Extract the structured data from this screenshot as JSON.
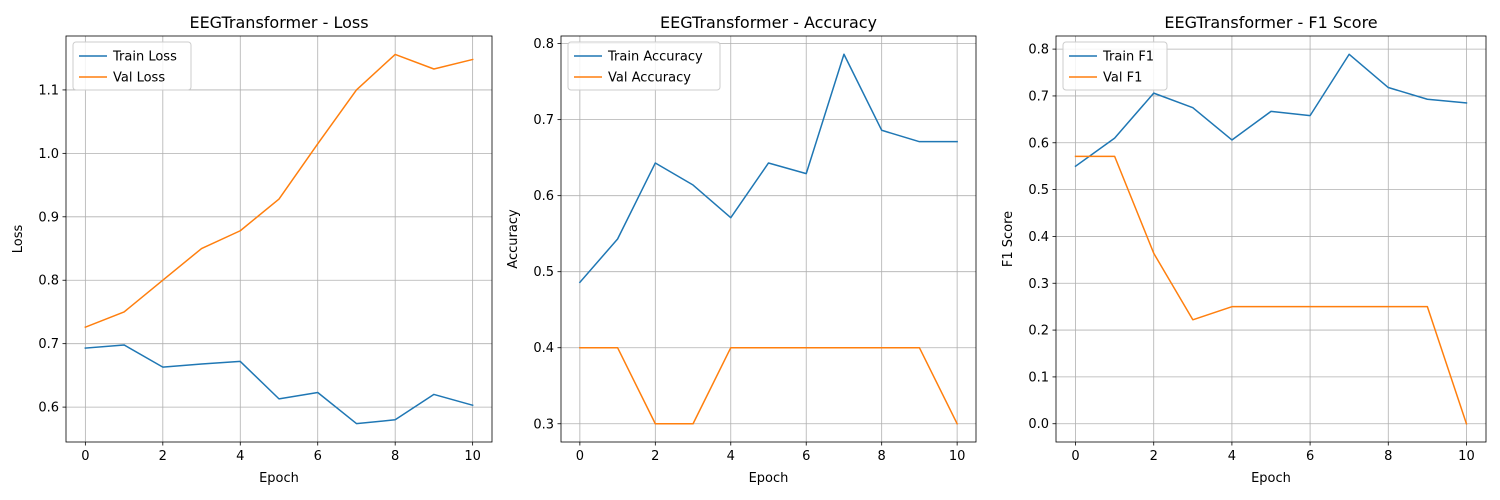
{
  "chart_data": [
    {
      "type": "line",
      "title": "EEGTransformer - Loss",
      "xlabel": "Epoch",
      "ylabel": "Loss",
      "x": [
        0,
        1,
        2,
        3,
        4,
        5,
        6,
        7,
        8,
        9,
        10
      ],
      "xlim": [
        -0.5,
        10.5
      ],
      "ylim": [
        0.545,
        1.185
      ],
      "xticks": [
        0,
        2,
        4,
        6,
        8,
        10
      ],
      "yticks": [
        0.6,
        0.7,
        0.8,
        0.9,
        1.0,
        1.1
      ],
      "ytick_labels": [
        "0.6",
        "0.7",
        "0.8",
        "0.9",
        "1.0",
        "1.1"
      ],
      "grid": true,
      "legend_position": "top-left",
      "series": [
        {
          "name": "Train Loss",
          "color": "#1f77b4",
          "values": [
            0.693,
            0.698,
            0.663,
            0.668,
            0.672,
            0.613,
            0.623,
            0.574,
            0.58,
            0.62,
            0.603
          ]
        },
        {
          "name": "Val Loss",
          "color": "#ff7f0e",
          "values": [
            0.726,
            0.75,
            0.8,
            0.85,
            0.878,
            0.928,
            1.015,
            1.1,
            1.156,
            1.133,
            1.148
          ]
        }
      ]
    },
    {
      "type": "line",
      "title": "EEGTransformer - Accuracy",
      "xlabel": "Epoch",
      "ylabel": "Accuracy",
      "x": [
        0,
        1,
        2,
        3,
        4,
        5,
        6,
        7,
        8,
        9,
        10
      ],
      "xlim": [
        -0.5,
        10.5
      ],
      "ylim": [
        0.276,
        0.81
      ],
      "xticks": [
        0,
        2,
        4,
        6,
        8,
        10
      ],
      "yticks": [
        0.3,
        0.4,
        0.5,
        0.6,
        0.7,
        0.8
      ],
      "ytick_labels": [
        "0.3",
        "0.4",
        "0.5",
        "0.6",
        "0.7",
        "0.8"
      ],
      "grid": true,
      "legend_position": "top-left",
      "series": [
        {
          "name": "Train Accuracy",
          "color": "#1f77b4",
          "values": [
            0.486,
            0.543,
            0.643,
            0.614,
            0.571,
            0.643,
            0.629,
            0.786,
            0.686,
            0.671,
            0.671
          ]
        },
        {
          "name": "Val Accuracy",
          "color": "#ff7f0e",
          "values": [
            0.4,
            0.4,
            0.3,
            0.3,
            0.4,
            0.4,
            0.4,
            0.4,
            0.4,
            0.4,
            0.3
          ]
        }
      ]
    },
    {
      "type": "line",
      "title": "EEGTransformer - F1 Score",
      "xlabel": "Epoch",
      "ylabel": "F1 Score",
      "x": [
        0,
        1,
        2,
        3,
        4,
        5,
        6,
        7,
        8,
        9,
        10
      ],
      "xlim": [
        -0.5,
        10.5
      ],
      "ylim": [
        -0.039,
        0.828
      ],
      "xticks": [
        0,
        2,
        4,
        6,
        8,
        10
      ],
      "yticks": [
        0.0,
        0.1,
        0.2,
        0.3,
        0.4,
        0.5,
        0.6,
        0.7,
        0.8
      ],
      "ytick_labels": [
        "0.0",
        "0.1",
        "0.2",
        "0.3",
        "0.4",
        "0.5",
        "0.6",
        "0.7",
        "0.8"
      ],
      "grid": true,
      "legend_position": "top-left",
      "series": [
        {
          "name": "Train F1",
          "color": "#1f77b4",
          "values": [
            0.55,
            0.61,
            0.706,
            0.675,
            0.606,
            0.667,
            0.658,
            0.789,
            0.718,
            0.693,
            0.685
          ]
        },
        {
          "name": "Val F1",
          "color": "#ff7f0e",
          "values": [
            0.571,
            0.571,
            0.364,
            0.222,
            0.25,
            0.25,
            0.25,
            0.25,
            0.25,
            0.25,
            0.0
          ]
        }
      ]
    }
  ]
}
